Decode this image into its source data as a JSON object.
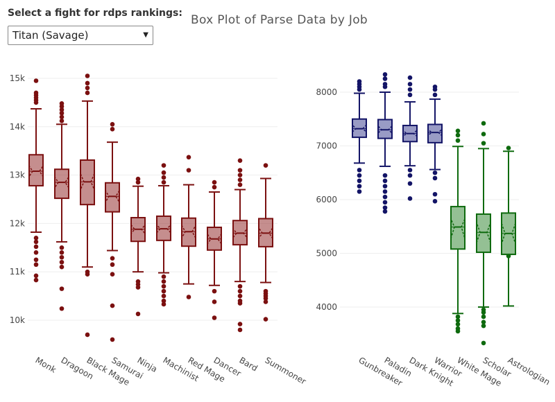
{
  "control": {
    "label": "Select a fight for rdps rankings:",
    "selected": "Titan (Savage)",
    "arrow_icon": "dropdown-caret-icon"
  },
  "chart_data": {
    "type": "box",
    "title": "Box Plot of Parse Data by Job",
    "panels": [
      {
        "name": "dps",
        "color": "#7b1010",
        "fill": "rgba(150,50,50,0.55)",
        "ylim": [
          9500,
          15200
        ],
        "yticks": [
          10000,
          11000,
          12000,
          13000,
          14000,
          15000
        ],
        "ytick_labels": [
          "10k",
          "11k",
          "12k",
          "13k",
          "14k",
          "15k"
        ],
        "categories": [
          "Monk",
          "Dragoon",
          "Black Mage",
          "Samurai",
          "Ninja",
          "Machinist",
          "Red Mage",
          "Dancer",
          "Bard",
          "Summoner"
        ],
        "boxes": [
          {
            "q1": 12780,
            "median": 13080,
            "q3": 13420,
            "notch_low": 12970,
            "notch_high": 13190,
            "whisker_low": 11820,
            "whisker_high": 14370,
            "outliers": [
              10830,
              10920,
              11150,
              11250,
              11400,
              11520,
              11620,
              11700,
              14500,
              14550,
              14600,
              14650,
              14700,
              14950
            ]
          },
          {
            "q1": 12520,
            "median": 12850,
            "q3": 13120,
            "notch_low": 12740,
            "notch_high": 12960,
            "whisker_low": 11620,
            "whisker_high": 14050,
            "outliers": [
              10240,
              10650,
              11100,
              11200,
              11300,
              11400,
              11500,
              14120,
              14200,
              14280,
              14350,
              14420,
              14480
            ]
          },
          {
            "q1": 12390,
            "median": 12860,
            "q3": 13310,
            "notch_low": 12700,
            "notch_high": 13030,
            "whisker_low": 11100,
            "whisker_high": 14530,
            "outliers": [
              9700,
              10950,
              11000,
              14700,
              14800,
              14900,
              15050
            ]
          },
          {
            "q1": 12240,
            "median": 12560,
            "q3": 12840,
            "notch_low": 12440,
            "notch_high": 12680,
            "whisker_low": 11440,
            "whisker_high": 13680,
            "outliers": [
              9600,
              10300,
              10950,
              11150,
              11280,
              13950,
              14050
            ]
          },
          {
            "q1": 11630,
            "median": 11880,
            "q3": 12120,
            "notch_low": 11790,
            "notch_high": 11970,
            "whisker_low": 11000,
            "whisker_high": 12770,
            "outliers": [
              10130,
              10680,
              10740,
              10800,
              12850,
              12920
            ]
          },
          {
            "q1": 11650,
            "median": 11890,
            "q3": 12150,
            "notch_low": 11810,
            "notch_high": 11970,
            "whisker_low": 10980,
            "whisker_high": 12780,
            "outliers": [
              10330,
              10400,
              10500,
              10600,
              10700,
              10800,
              10900,
              12850,
              12950,
              13050,
              13200
            ]
          },
          {
            "q1": 11530,
            "median": 11830,
            "q3": 12110,
            "notch_low": 11700,
            "notch_high": 11960,
            "whisker_low": 10750,
            "whisker_high": 12800,
            "outliers": [
              10480,
              13100,
              13370
            ]
          },
          {
            "q1": 11450,
            "median": 11680,
            "q3": 11920,
            "notch_low": 11580,
            "notch_high": 11780,
            "whisker_low": 10720,
            "whisker_high": 12650,
            "outliers": [
              10050,
              10380,
              10600,
              12750,
              12850
            ]
          },
          {
            "q1": 11560,
            "median": 11800,
            "q3": 12060,
            "notch_low": 11710,
            "notch_high": 11890,
            "whisker_low": 10800,
            "whisker_high": 12700,
            "outliers": [
              9800,
              9920,
              10350,
              10400,
              10500,
              10600,
              10700,
              12800,
              12900,
              13000,
              13100,
              13300
            ]
          },
          {
            "q1": 11520,
            "median": 11800,
            "q3": 12100,
            "notch_low": 11690,
            "notch_high": 11910,
            "whisker_low": 10780,
            "whisker_high": 12930,
            "outliers": [
              10020,
              10380,
              10450,
              10500,
              10550,
              10600,
              13200
            ]
          }
        ]
      },
      {
        "name": "tank",
        "color": "#131466",
        "fill": "rgba(70,72,150,0.55)",
        "ylim": [
          3300,
          8400
        ],
        "yticks": [
          4000,
          5000,
          6000,
          7000,
          8000
        ],
        "ytick_labels": [
          "4000",
          "5000",
          "6000",
          "7000",
          "8000"
        ],
        "categories": [
          "Gunbreaker",
          "Paladin",
          "Dark Knight",
          "Warrior"
        ],
        "boxes": [
          {
            "q1": 7160,
            "median": 7320,
            "q3": 7500,
            "notch_low": 7260,
            "notch_high": 7390,
            "whisker_low": 6680,
            "whisker_high": 7980,
            "outliers": [
              6150,
              6250,
              6350,
              6450,
              6550,
              8050,
              8100,
              8150,
              8200
            ]
          },
          {
            "q1": 7140,
            "median": 7300,
            "q3": 7490,
            "notch_low": 7240,
            "notch_high": 7370,
            "whisker_low": 6620,
            "whisker_high": 8000,
            "outliers": [
              5780,
              5850,
              5950,
              6050,
              6150,
              6250,
              6350,
              6450,
              8100,
              8150,
              8250,
              8330
            ]
          },
          {
            "q1": 7080,
            "median": 7230,
            "q3": 7380,
            "notch_low": 7180,
            "notch_high": 7290,
            "whisker_low": 6630,
            "whisker_high": 7820,
            "outliers": [
              6020,
              6300,
              6450,
              6550,
              7950,
              8050,
              8150,
              8270
            ]
          },
          {
            "q1": 7060,
            "median": 7250,
            "q3": 7400,
            "notch_low": 7190,
            "notch_high": 7310,
            "whisker_low": 6560,
            "whisker_high": 7870,
            "outliers": [
              5970,
              6100,
              6400,
              6500,
              7950,
              8050,
              8100
            ]
          }
        ]
      },
      {
        "name": "healer",
        "color": "#0e6a0e",
        "fill": "rgba(60,140,60,0.55)",
        "ylim": [
          3300,
          8400
        ],
        "yticks": [],
        "ytick_labels": [],
        "categories": [
          "White Mage",
          "Scholar",
          "Astrologian"
        ],
        "boxes": [
          {
            "q1": 5080,
            "median": 5490,
            "q3": 5870,
            "notch_low": 5280,
            "notch_high": 5640,
            "whisker_low": 3880,
            "whisker_high": 6990,
            "outliers": [
              3550,
              3600,
              3680,
              3750,
              3820,
              7100,
              7200,
              7280
            ]
          },
          {
            "q1": 5020,
            "median": 5390,
            "q3": 5730,
            "notch_low": 5200,
            "notch_high": 5570,
            "whisker_low": 4000,
            "whisker_high": 6950,
            "outliers": [
              3330,
              3650,
              3720,
              3820,
              3900,
              3950,
              7050,
              7220,
              7420
            ]
          },
          {
            "q1": 4980,
            "median": 5370,
            "q3": 5750,
            "notch_low": 5180,
            "notch_high": 5560,
            "whisker_low": 4020,
            "whisker_high": 6900,
            "outliers": [
              4950,
              6960
            ]
          }
        ]
      }
    ]
  }
}
